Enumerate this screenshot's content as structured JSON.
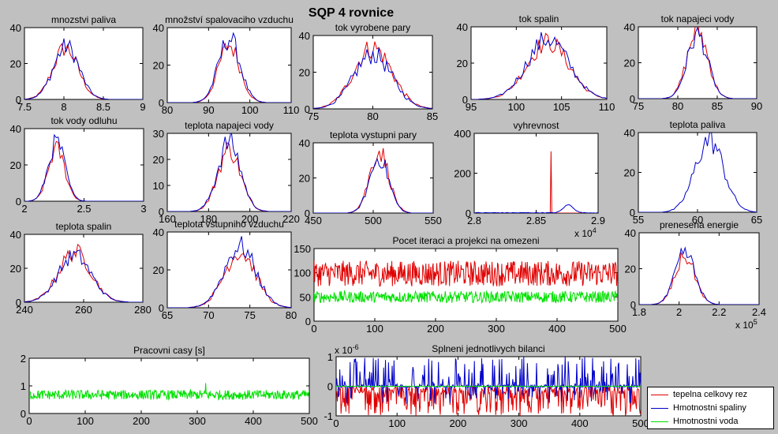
{
  "figure_title": "SQP 4 rovnice",
  "colors": {
    "red": "#e00000",
    "blue": "#0000c8",
    "green": "#00e000",
    "axes_bg": "#ffffff",
    "figure_bg": "#c0c0c0"
  },
  "legend": {
    "entries": [
      {
        "label": "tepelna celkovy rez",
        "color": "#e00000"
      },
      {
        "label": "Hmotnostni spaliny",
        "color": "#0000c8"
      },
      {
        "label": "Hmotnostni voda",
        "color": "#00e000"
      }
    ]
  },
  "chart_data": [
    {
      "id": "mnozstvi-paliva",
      "type": "line",
      "title": "mnozstvi paliva",
      "xlim": [
        7.5,
        9
      ],
      "ylim": [
        0,
        40
      ],
      "xticks": [
        7.5,
        8,
        8.5,
        9
      ],
      "xtick_labels": [
        "7.5",
        "8",
        "8.5",
        "9"
      ],
      "yticks": [
        0,
        20,
        40
      ],
      "ytick_labels": [
        "0",
        "20",
        "40"
      ],
      "series": [
        {
          "name": "red",
          "kind": "hist",
          "center": 8.02,
          "spread": 0.16,
          "peak": 30
        },
        {
          "name": "blue",
          "kind": "hist",
          "center": 8.03,
          "spread": 0.16,
          "peak": 31
        }
      ]
    },
    {
      "id": "mnozstvi-spalovaciho-vzduchu",
      "type": "line",
      "title": "množství spalovaciho vzduchu",
      "xlim": [
        80,
        110
      ],
      "ylim": [
        0,
        40
      ],
      "xticks": [
        80,
        90,
        100,
        110
      ],
      "xtick_labels": [
        "80",
        "90",
        "100",
        "110"
      ],
      "yticks": [
        0,
        20,
        40
      ],
      "ytick_labels": [
        "0",
        "20",
        "40"
      ],
      "series": [
        {
          "name": "red",
          "kind": "hist",
          "center": 95,
          "spread": 2.6,
          "peak": 32
        },
        {
          "name": "blue",
          "kind": "hist",
          "center": 95,
          "spread": 2.6,
          "peak": 36
        }
      ]
    },
    {
      "id": "tok-vyrobene-pary",
      "type": "line",
      "title": "tok vyrobene pary",
      "xlim": [
        75,
        85
      ],
      "ylim": [
        0,
        40
      ],
      "xticks": [
        75,
        80,
        85
      ],
      "xtick_labels": [
        "75",
        "80",
        "85"
      ],
      "yticks": [
        0,
        20,
        40
      ],
      "ytick_labels": [
        "0",
        "20",
        "40"
      ],
      "series": [
        {
          "name": "red",
          "kind": "hist",
          "center": 80,
          "spread": 1.6,
          "peak": 35
        },
        {
          "name": "blue",
          "kind": "hist",
          "center": 80,
          "spread": 1.6,
          "peak": 31
        }
      ]
    },
    {
      "id": "tok-spalin",
      "type": "line",
      "title": "tok spalin",
      "xlim": [
        95,
        110
      ],
      "ylim": [
        0,
        40
      ],
      "xticks": [
        95,
        100,
        105,
        110
      ],
      "xtick_labels": [
        "95",
        "100",
        "105",
        "110"
      ],
      "yticks": [
        0,
        20,
        40
      ],
      "ytick_labels": [
        "0",
        "20",
        "40"
      ],
      "series": [
        {
          "name": "red",
          "kind": "hist",
          "center": 103.5,
          "spread": 2.3,
          "peak": 33
        },
        {
          "name": "blue",
          "kind": "hist",
          "center": 103.5,
          "spread": 2.3,
          "peak": 35
        }
      ]
    },
    {
      "id": "tok-napajeci-vody",
      "type": "line",
      "title": "tok napajeci vody",
      "xlim": [
        75,
        90
      ],
      "ylim": [
        0,
        40
      ],
      "xticks": [
        75,
        80,
        85,
        90
      ],
      "xtick_labels": [
        "75",
        "80",
        "85",
        "90"
      ],
      "yticks": [
        0,
        20,
        40
      ],
      "ytick_labels": [
        "0",
        "20",
        "40"
      ],
      "series": [
        {
          "name": "red",
          "kind": "hist",
          "center": 82.5,
          "spread": 1.3,
          "peak": 40
        },
        {
          "name": "blue",
          "kind": "hist",
          "center": 82.5,
          "spread": 1.3,
          "peak": 37
        }
      ]
    },
    {
      "id": "tok-vody-odluhu",
      "type": "line",
      "title": "tok vody odluhu",
      "xlim": [
        2,
        3
      ],
      "ylim": [
        0,
        40
      ],
      "xticks": [
        2,
        2.5,
        3
      ],
      "xtick_labels": [
        "2",
        "2.5",
        "3"
      ],
      "yticks": [
        0,
        20,
        40
      ],
      "ytick_labels": [
        "0",
        "20",
        "40"
      ],
      "series": [
        {
          "name": "red",
          "kind": "hist",
          "center": 2.27,
          "spread": 0.07,
          "peak": 30
        },
        {
          "name": "blue",
          "kind": "hist",
          "center": 2.27,
          "spread": 0.07,
          "peak": 34
        }
      ]
    },
    {
      "id": "teplota-napajeci-vody",
      "type": "line",
      "title": "teplota napajeci vody",
      "xlim": [
        160,
        220
      ],
      "ylim": [
        0,
        30
      ],
      "xticks": [
        160,
        180,
        200,
        220
      ],
      "xtick_labels": [
        "160",
        "180",
        "200",
        "220"
      ],
      "yticks": [
        0,
        10,
        20,
        30
      ],
      "ytick_labels": [
        "0",
        "10",
        "20",
        "30"
      ],
      "series": [
        {
          "name": "red",
          "kind": "hist",
          "center": 190,
          "spread": 5.5,
          "peak": 25
        },
        {
          "name": "blue",
          "kind": "hist",
          "center": 190,
          "spread": 5.5,
          "peak": 28
        }
      ]
    },
    {
      "id": "teplota-vystupni-pary",
      "type": "line",
      "title": "teplota vystupni pary",
      "xlim": [
        450,
        550
      ],
      "ylim": [
        0,
        40
      ],
      "xticks": [
        450,
        500,
        550
      ],
      "xtick_labels": [
        "450",
        "500",
        "550"
      ],
      "yticks": [
        0,
        20,
        40
      ],
      "ytick_labels": [
        "0",
        "20",
        "40"
      ],
      "series": [
        {
          "name": "red",
          "kind": "hist",
          "center": 505,
          "spread": 8,
          "peak": 37
        },
        {
          "name": "blue",
          "kind": "hist",
          "center": 505,
          "spread": 8,
          "peak": 33
        }
      ]
    },
    {
      "id": "vyhrevnost",
      "type": "line",
      "title": "vyhrevnost",
      "xlim": [
        2.8,
        2.9
      ],
      "ylim": [
        0,
        400
      ],
      "xexp": "x 10",
      "xexp_power": "4",
      "xticks": [
        2.8,
        2.85,
        2.9
      ],
      "xtick_labels": [
        "2.8",
        "2.85",
        "2.9"
      ],
      "yticks": [
        0,
        200,
        400
      ],
      "ytick_labels": [
        "0",
        "200",
        "400"
      ],
      "series": [
        {
          "name": "red",
          "kind": "spike",
          "position": 2.862,
          "peak": 310
        },
        {
          "name": "blue",
          "kind": "bump",
          "center": 2.876,
          "spread": 0.004,
          "peak": 40
        }
      ]
    },
    {
      "id": "teplota-paliva",
      "type": "line",
      "title": "teplota paliva",
      "xlim": [
        55,
        65
      ],
      "ylim": [
        0,
        40
      ],
      "xticks": [
        55,
        60,
        65
      ],
      "xtick_labels": [
        "55",
        "60",
        "65"
      ],
      "yticks": [
        0,
        20,
        40
      ],
      "ytick_labels": [
        "0",
        "20",
        "40"
      ],
      "series": [
        {
          "name": "blue",
          "kind": "hist",
          "center": 61,
          "spread": 1.2,
          "peak": 38
        }
      ]
    },
    {
      "id": "teplota-spalin",
      "type": "line",
      "title": "teplota spalin",
      "xlim": [
        240,
        280
      ],
      "ylim": [
        0,
        40
      ],
      "xticks": [
        240,
        260,
        280
      ],
      "xtick_labels": [
        "240",
        "260",
        "280"
      ],
      "yticks": [
        0,
        20,
        40
      ],
      "ytick_labels": [
        "0",
        "20",
        "40"
      ],
      "series": [
        {
          "name": "red",
          "kind": "hist",
          "center": 257,
          "spread": 5.5,
          "peak": 31
        },
        {
          "name": "blue",
          "kind": "hist",
          "center": 257,
          "spread": 5.5,
          "peak": 29
        }
      ]
    },
    {
      "id": "teplota-vstupniho-vzduchu",
      "type": "line",
      "title": "teplota vstupniho vzduchu",
      "xlim": [
        65,
        80
      ],
      "ylim": [
        0,
        40
      ],
      "xticks": [
        65,
        70,
        75,
        80
      ],
      "xtick_labels": [
        "65",
        "70",
        "75",
        "80"
      ],
      "yticks": [
        0,
        20,
        40
      ],
      "ytick_labels": [
        "0",
        "20",
        "40"
      ],
      "series": [
        {
          "name": "red",
          "kind": "hist",
          "center": 73.8,
          "spread": 1.9,
          "peak": 31
        },
        {
          "name": "blue",
          "kind": "hist",
          "center": 73.8,
          "spread": 1.9,
          "peak": 34
        }
      ]
    },
    {
      "id": "pocet-iteraci",
      "type": "line",
      "title": "Pocet iteraci a projekci na omezeni",
      "xlim": [
        0,
        500
      ],
      "ylim": [
        0,
        150
      ],
      "xticks": [
        0,
        100,
        200,
        300,
        400,
        500
      ],
      "xtick_labels": [
        "0",
        "100",
        "200",
        "300",
        "400",
        "500"
      ],
      "yticks": [
        0,
        50,
        100,
        150
      ],
      "ytick_labels": [
        "0",
        "50",
        "100",
        "150"
      ],
      "series": [
        {
          "name": "red",
          "kind": "noise",
          "low": 72,
          "high": 125
        },
        {
          "name": "green",
          "kind": "noise",
          "low": 38,
          "high": 62
        }
      ]
    },
    {
      "id": "prenesena-energie",
      "type": "line",
      "title": "prenesena energie",
      "xlim": [
        1.8,
        2.4
      ],
      "ylim": [
        0,
        40
      ],
      "xexp": "x 10",
      "xexp_power": "5",
      "xticks": [
        1.8,
        2,
        2.2,
        2.4
      ],
      "xtick_labels": [
        "1.8",
        "2",
        "2.2",
        "2.4"
      ],
      "yticks": [
        0,
        20,
        40
      ],
      "ytick_labels": [
        "0",
        "20",
        "40"
      ],
      "series": [
        {
          "name": "red",
          "kind": "hist",
          "center": 2.03,
          "spread": 0.05,
          "peak": 28
        },
        {
          "name": "blue",
          "kind": "hist",
          "center": 2.03,
          "spread": 0.05,
          "peak": 30
        }
      ]
    },
    {
      "id": "pracovni-casy",
      "type": "line",
      "title": "Pracovni casy [s]",
      "xlim": [
        0,
        500
      ],
      "ylim": [
        0,
        2
      ],
      "xticks": [
        0,
        100,
        200,
        300,
        400,
        500
      ],
      "xtick_labels": [
        "0",
        "100",
        "200",
        "300",
        "400",
        "500"
      ],
      "yticks": [
        0,
        1,
        2
      ],
      "ytick_labels": [
        "0",
        "1",
        "2"
      ],
      "series": [
        {
          "name": "green",
          "kind": "noise",
          "low": 0.5,
          "high": 0.85,
          "spike_at": 315,
          "spike_value": 1.1
        }
      ]
    },
    {
      "id": "splneni-bilanci",
      "type": "line",
      "title": "Splneni jednotlivych bilanci",
      "xlim": [
        0,
        500
      ],
      "ylim": [
        -1,
        1
      ],
      "yexp": "x 10",
      "yexp_power": "-6",
      "xticks": [
        0,
        100,
        200,
        300,
        400,
        500
      ],
      "xtick_labels": [
        "0",
        "100",
        "200",
        "300",
        "400",
        "500"
      ],
      "yticks": [
        -1,
        0,
        1
      ],
      "ytick_labels": [
        "-1",
        "0",
        "1"
      ],
      "series": [
        {
          "name": "red",
          "kind": "spiky",
          "low": -1,
          "high": 0.05
        },
        {
          "name": "blue",
          "kind": "spiky",
          "low": -0.6,
          "high": 1
        },
        {
          "name": "green",
          "kind": "flat",
          "value": 0
        }
      ]
    }
  ]
}
